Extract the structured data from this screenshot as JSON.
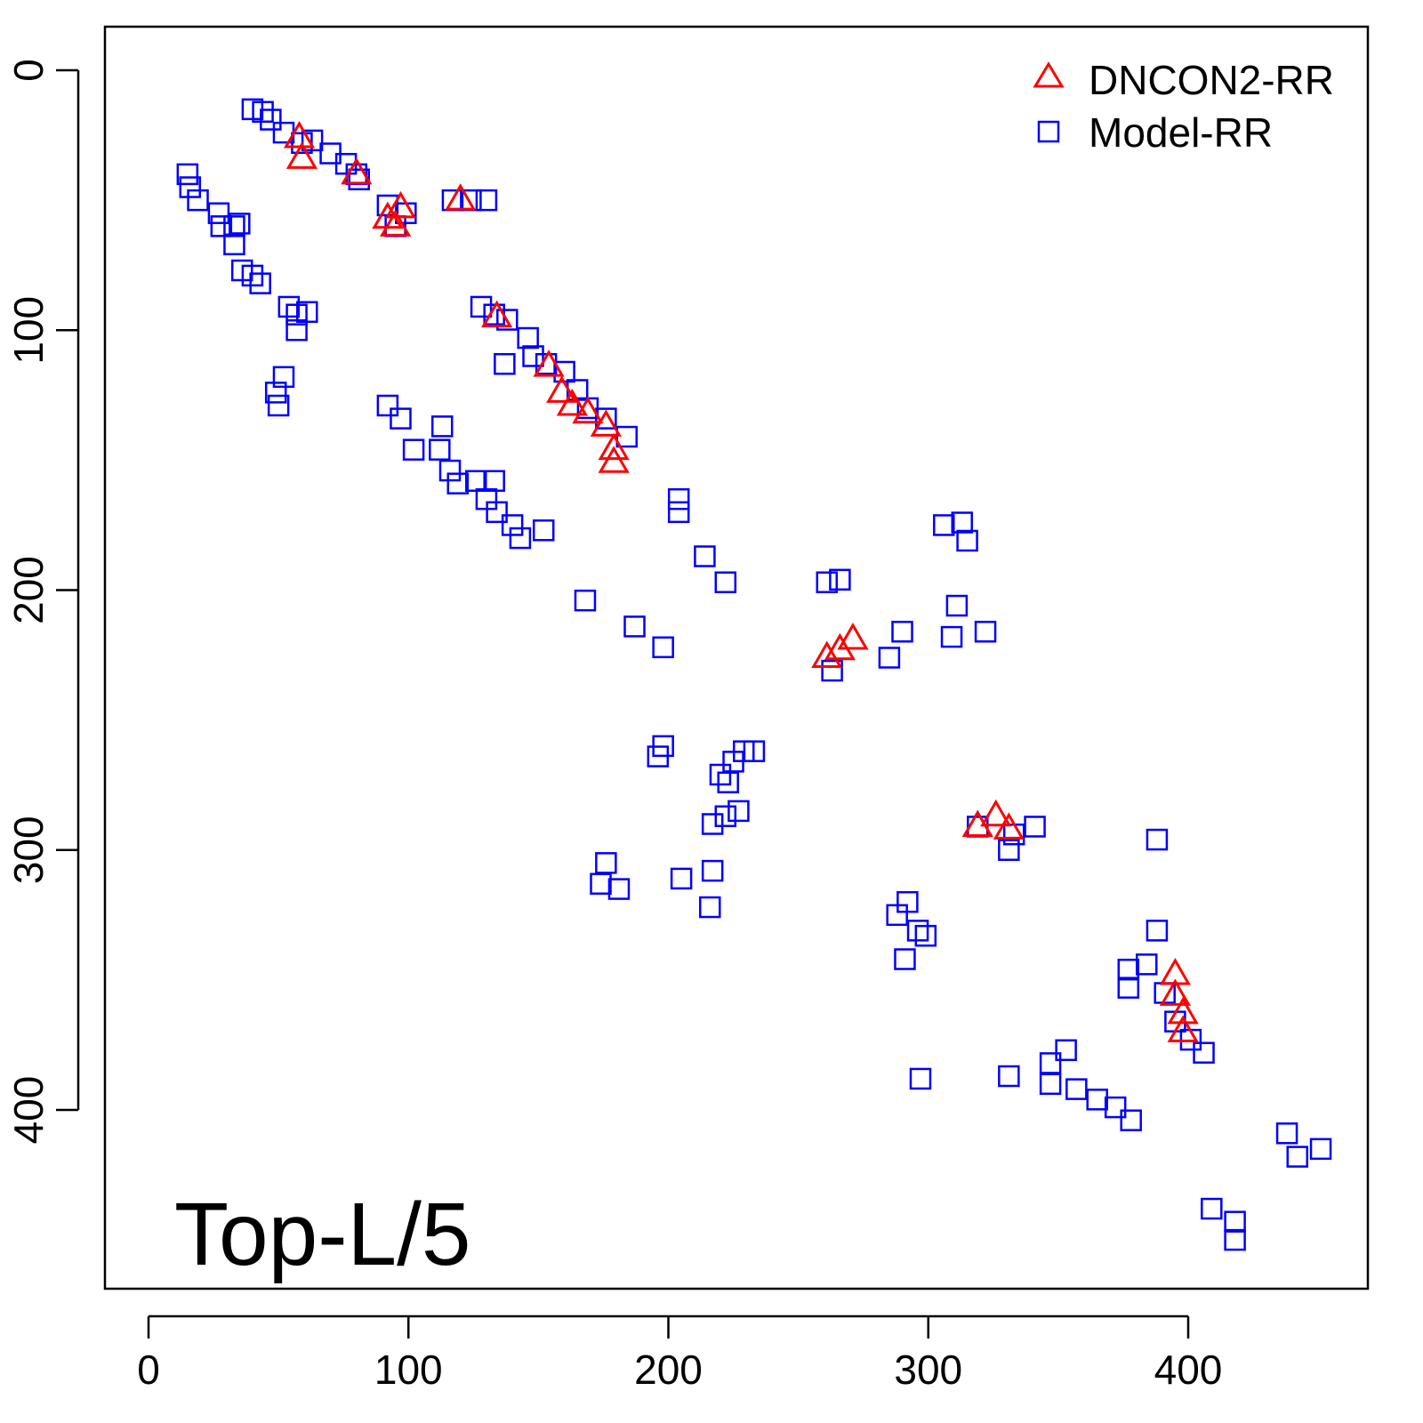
{
  "chart_data": {
    "type": "scatter",
    "title": "",
    "annotation": "Top-L/5",
    "xlabel": "",
    "ylabel": "",
    "xlim": [
      -17,
      469
    ],
    "ylim": [
      469,
      -17
    ],
    "y_inverted": true,
    "grid": false,
    "x_ticks": [
      0,
      100,
      200,
      300,
      400
    ],
    "y_ticks": [
      0,
      100,
      200,
      300,
      400
    ],
    "x_tick_labels": [
      "0",
      "100",
      "200",
      "300",
      "400"
    ],
    "y_tick_labels": [
      "0",
      "100",
      "200",
      "300",
      "400"
    ],
    "legend": {
      "placement": "top-right",
      "entries": [
        {
          "label": "DNCON2-RR",
          "marker": "triangle",
          "color": "#ff0000"
        },
        {
          "label": "Model-RR",
          "marker": "square",
          "color": "#0000ff"
        }
      ]
    },
    "series": [
      {
        "name": "Model-RR",
        "marker": "square",
        "color": "#0000ff",
        "points": [
          [
            40,
            15
          ],
          [
            44,
            16
          ],
          [
            47,
            19
          ],
          [
            52,
            24
          ],
          [
            59,
            28
          ],
          [
            63,
            27
          ],
          [
            70,
            32
          ],
          [
            76,
            36
          ],
          [
            80,
            40
          ],
          [
            81,
            42
          ],
          [
            15,
            40
          ],
          [
            16,
            45
          ],
          [
            19,
            50
          ],
          [
            27,
            55
          ],
          [
            28,
            60
          ],
          [
            33,
            60
          ],
          [
            35,
            59
          ],
          [
            33,
            67
          ],
          [
            36,
            77
          ],
          [
            40,
            79
          ],
          [
            43,
            82
          ],
          [
            54,
            91
          ],
          [
            57,
            94
          ],
          [
            61,
            93
          ],
          [
            57,
            100
          ],
          [
            49,
            124
          ],
          [
            52,
            118
          ],
          [
            50,
            129
          ],
          [
            92,
            52
          ],
          [
            95,
            60
          ],
          [
            99,
            55
          ],
          [
            117,
            50
          ],
          [
            124,
            50
          ],
          [
            130,
            50
          ],
          [
            128,
            91
          ],
          [
            133,
            94
          ],
          [
            138,
            96
          ],
          [
            146,
            103
          ],
          [
            137,
            113
          ],
          [
            148,
            110
          ],
          [
            153,
            113
          ],
          [
            160,
            116
          ],
          [
            165,
            123
          ],
          [
            169,
            130
          ],
          [
            176,
            134
          ],
          [
            184,
            141
          ],
          [
            92,
            129
          ],
          [
            97,
            134
          ],
          [
            102,
            146
          ],
          [
            113,
            137
          ],
          [
            112,
            146
          ],
          [
            116,
            154
          ],
          [
            119,
            159
          ],
          [
            126,
            158
          ],
          [
            133,
            158
          ],
          [
            130,
            165
          ],
          [
            134,
            170
          ],
          [
            140,
            175
          ],
          [
            143,
            180
          ],
          [
            152,
            177
          ],
          [
            204,
            165
          ],
          [
            204,
            170
          ],
          [
            168,
            204
          ],
          [
            214,
            187
          ],
          [
            222,
            197
          ],
          [
            187,
            214
          ],
          [
            198,
            222
          ],
          [
            261,
            197
          ],
          [
            266,
            196
          ],
          [
            263,
            231
          ],
          [
            285,
            226
          ],
          [
            290,
            216
          ],
          [
            306,
            175
          ],
          [
            313,
            174
          ],
          [
            315,
            181
          ],
          [
            311,
            206
          ],
          [
            309,
            218
          ],
          [
            322,
            216
          ],
          [
            196,
            264
          ],
          [
            198,
            260
          ],
          [
            220,
            271
          ],
          [
            225,
            266
          ],
          [
            229,
            262
          ],
          [
            233,
            262
          ],
          [
            223,
            274
          ],
          [
            217,
            290
          ],
          [
            222,
            287
          ],
          [
            227,
            285
          ],
          [
            176,
            305
          ],
          [
            174,
            313
          ],
          [
            181,
            315
          ],
          [
            205,
            311
          ],
          [
            217,
            308
          ],
          [
            216,
            322
          ],
          [
            319,
            291
          ],
          [
            333,
            294
          ],
          [
            341,
            291
          ],
          [
            331,
            300
          ],
          [
            388,
            296
          ],
          [
            288,
            325
          ],
          [
            292,
            320
          ],
          [
            296,
            331
          ],
          [
            299,
            333
          ],
          [
            291,
            342
          ],
          [
            388,
            331
          ],
          [
            377,
            346
          ],
          [
            384,
            344
          ],
          [
            377,
            353
          ],
          [
            391,
            355
          ],
          [
            395,
            366
          ],
          [
            401,
            373
          ],
          [
            406,
            378
          ],
          [
            297,
            388
          ],
          [
            331,
            387
          ],
          [
            347,
            382
          ],
          [
            353,
            377
          ],
          [
            347,
            390
          ],
          [
            357,
            392
          ],
          [
            365,
            396
          ],
          [
            372,
            399
          ],
          [
            378,
            404
          ],
          [
            438,
            409
          ],
          [
            442,
            418
          ],
          [
            451,
            415
          ],
          [
            409,
            438
          ],
          [
            418,
            443
          ],
          [
            418,
            450
          ]
        ]
      },
      {
        "name": "DNCON2-RR",
        "marker": "triangle",
        "color": "#ff0000",
        "points": [
          [
            58,
            26
          ],
          [
            59,
            34
          ],
          [
            80,
            40
          ],
          [
            92,
            57
          ],
          [
            97,
            53
          ],
          [
            95,
            60
          ],
          [
            120,
            50
          ],
          [
            134,
            95
          ],
          [
            154,
            114
          ],
          [
            159,
            124
          ],
          [
            163,
            129
          ],
          [
            169,
            132
          ],
          [
            176,
            137
          ],
          [
            179,
            146
          ],
          [
            179,
            151
          ],
          [
            261,
            226
          ],
          [
            266,
            223
          ],
          [
            271,
            219
          ],
          [
            319,
            291
          ],
          [
            326,
            287
          ],
          [
            331,
            292
          ],
          [
            395,
            348
          ],
          [
            395,
            356
          ],
          [
            398,
            363
          ],
          [
            398,
            370
          ]
        ]
      }
    ]
  }
}
